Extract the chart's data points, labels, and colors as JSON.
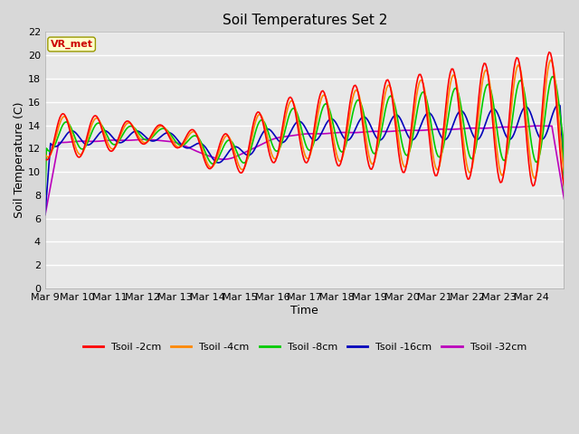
{
  "title": "Soil Temperatures Set 2",
  "xlabel": "Time",
  "ylabel": "Soil Temperature (C)",
  "ylim": [
    0,
    22
  ],
  "yticks": [
    0,
    2,
    4,
    6,
    8,
    10,
    12,
    14,
    16,
    18,
    20,
    22
  ],
  "xtick_labels": [
    "Mar 9",
    "Mar 10",
    "Mar 11",
    "Mar 12",
    "Mar 13",
    "Mar 14",
    "Mar 15",
    "Mar 16",
    "Mar 17",
    "Mar 18",
    "Mar 19",
    "Mar 20",
    "Mar 21",
    "Mar 22",
    "Mar 23",
    "Mar 24"
  ],
  "series": {
    "Tsoil -2cm": {
      "color": "#ff0000",
      "lw": 1.2
    },
    "Tsoil -4cm": {
      "color": "#ff8800",
      "lw": 1.2
    },
    "Tsoil -8cm": {
      "color": "#00cc00",
      "lw": 1.2
    },
    "Tsoil -16cm": {
      "color": "#0000bb",
      "lw": 1.2
    },
    "Tsoil -32cm": {
      "color": "#bb00bb",
      "lw": 1.2
    }
  },
  "annotation_text": "VR_met",
  "annotation_color": "#cc0000",
  "annotation_bg": "#ffffcc",
  "annotation_edge": "#999900",
  "background_color": "#d8d8d8",
  "plot_bg": "#e8e8e8",
  "grid_color": "#ffffff",
  "title_fontsize": 11,
  "label_fontsize": 9,
  "tick_fontsize": 8
}
